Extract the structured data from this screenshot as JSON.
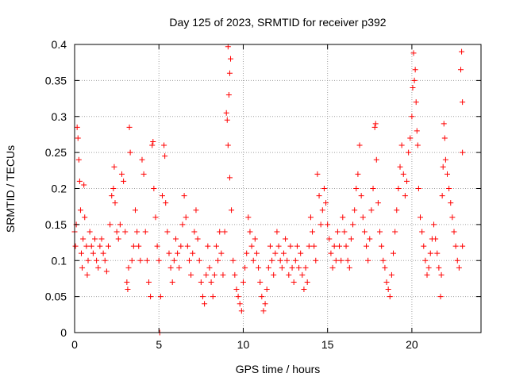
{
  "chart_data": {
    "type": "scatter",
    "title": "Day 125 of 2023, SRMTID for receiver p392",
    "xlabel": "GPS time / hours",
    "ylabel": "SRMTID / TECUs",
    "xlim": [
      0,
      24.1
    ],
    "ylim": [
      0,
      0.4
    ],
    "x_ticks": [
      0,
      5,
      10,
      15,
      20
    ],
    "x_tick_labels": [
      "0",
      "5",
      "10",
      "15",
      "20"
    ],
    "y_ticks": [
      0,
      0.05,
      0.1,
      0.15,
      0.2,
      0.25,
      0.3,
      0.35,
      0.4
    ],
    "y_tick_labels": [
      "0",
      "0.05",
      "0.1",
      "0.15",
      "0.2",
      "0.25",
      "0.3",
      "0.35",
      "0.4"
    ],
    "grid": true,
    "marker": "+",
    "color": "#ff0000",
    "series": [
      {
        "name": "SRMTID",
        "points": [
          [
            0.0,
            0.14
          ],
          [
            0.05,
            0.12
          ],
          [
            0.1,
            0.15
          ],
          [
            0.15,
            0.285
          ],
          [
            0.2,
            0.27
          ],
          [
            0.25,
            0.24
          ],
          [
            0.3,
            0.21
          ],
          [
            0.35,
            0.17
          ],
          [
            0.4,
            0.11
          ],
          [
            0.45,
            0.09
          ],
          [
            0.5,
            0.13
          ],
          [
            0.55,
            0.205
          ],
          [
            0.6,
            0.16
          ],
          [
            0.7,
            0.12
          ],
          [
            0.75,
            0.08
          ],
          [
            0.8,
            0.1
          ],
          [
            0.9,
            0.14
          ],
          [
            1.0,
            0.12
          ],
          [
            1.1,
            0.11
          ],
          [
            1.2,
            0.13
          ],
          [
            1.3,
            0.1
          ],
          [
            1.4,
            0.09
          ],
          [
            1.5,
            0.12
          ],
          [
            1.6,
            0.13
          ],
          [
            1.7,
            0.11
          ],
          [
            1.8,
            0.1
          ],
          [
            1.9,
            0.085
          ],
          [
            2.0,
            0.12
          ],
          [
            2.1,
            0.15
          ],
          [
            2.2,
            0.19
          ],
          [
            2.3,
            0.2
          ],
          [
            2.35,
            0.23
          ],
          [
            2.4,
            0.18
          ],
          [
            2.5,
            0.14
          ],
          [
            2.6,
            0.13
          ],
          [
            2.7,
            0.15
          ],
          [
            2.8,
            0.22
          ],
          [
            2.9,
            0.21
          ],
          [
            3.0,
            0.14
          ],
          [
            3.1,
            0.07
          ],
          [
            3.15,
            0.06
          ],
          [
            3.2,
            0.09
          ],
          [
            3.25,
            0.285
          ],
          [
            3.3,
            0.25
          ],
          [
            3.4,
            0.1
          ],
          [
            3.5,
            0.12
          ],
          [
            3.6,
            0.17
          ],
          [
            3.7,
            0.14
          ],
          [
            3.8,
            0.12
          ],
          [
            3.9,
            0.1
          ],
          [
            4.0,
            0.24
          ],
          [
            4.1,
            0.22
          ],
          [
            4.2,
            0.14
          ],
          [
            4.3,
            0.1
          ],
          [
            4.4,
            0.07
          ],
          [
            4.5,
            0.05
          ],
          [
            4.6,
            0.26
          ],
          [
            4.65,
            0.265
          ],
          [
            4.7,
            0.2
          ],
          [
            4.8,
            0.16
          ],
          [
            4.9,
            0.12
          ],
          [
            5.0,
            0.1
          ],
          [
            5.05,
            0.0
          ],
          [
            5.1,
            0.05
          ],
          [
            5.2,
            0.19
          ],
          [
            5.3,
            0.26
          ],
          [
            5.35,
            0.245
          ],
          [
            5.4,
            0.18
          ],
          [
            5.5,
            0.14
          ],
          [
            5.6,
            0.11
          ],
          [
            5.7,
            0.09
          ],
          [
            5.8,
            0.07
          ],
          [
            5.9,
            0.1
          ],
          [
            6.0,
            0.13
          ],
          [
            6.1,
            0.11
          ],
          [
            6.2,
            0.09
          ],
          [
            6.3,
            0.12
          ],
          [
            6.4,
            0.15
          ],
          [
            6.5,
            0.19
          ],
          [
            6.6,
            0.16
          ],
          [
            6.7,
            0.12
          ],
          [
            6.8,
            0.1
          ],
          [
            6.9,
            0.08
          ],
          [
            7.0,
            0.11
          ],
          [
            7.1,
            0.14
          ],
          [
            7.2,
            0.17
          ],
          [
            7.3,
            0.13
          ],
          [
            7.4,
            0.1
          ],
          [
            7.5,
            0.07
          ],
          [
            7.6,
            0.05
          ],
          [
            7.7,
            0.04
          ],
          [
            7.8,
            0.08
          ],
          [
            7.9,
            0.12
          ],
          [
            8.0,
            0.09
          ],
          [
            8.1,
            0.07
          ],
          [
            8.2,
            0.05
          ],
          [
            8.3,
            0.08
          ],
          [
            8.4,
            0.12
          ],
          [
            8.5,
            0.1
          ],
          [
            8.6,
            0.14
          ],
          [
            8.7,
            0.11
          ],
          [
            8.8,
            0.08
          ],
          [
            8.9,
            0.14
          ],
          [
            9.0,
            0.305
          ],
          [
            9.05,
            0.295
          ],
          [
            9.1,
            0.26
          ],
          [
            9.15,
            0.33
          ],
          [
            9.2,
            0.36
          ],
          [
            9.25,
            0.38
          ],
          [
            9.1,
            0.397
          ],
          [
            9.2,
            0.215
          ],
          [
            9.3,
            0.17
          ],
          [
            9.4,
            0.1
          ],
          [
            9.5,
            0.08
          ],
          [
            9.6,
            0.06
          ],
          [
            9.7,
            0.05
          ],
          [
            9.8,
            0.04
          ],
          [
            9.9,
            0.03
          ],
          [
            10.0,
            0.07
          ],
          [
            10.1,
            0.09
          ],
          [
            10.2,
            0.11
          ],
          [
            10.3,
            0.16
          ],
          [
            10.4,
            0.14
          ],
          [
            10.5,
            0.12
          ],
          [
            10.6,
            0.1
          ],
          [
            10.7,
            0.13
          ],
          [
            10.8,
            0.11
          ],
          [
            10.9,
            0.09
          ],
          [
            11.0,
            0.07
          ],
          [
            11.1,
            0.05
          ],
          [
            11.2,
            0.03
          ],
          [
            11.3,
            0.04
          ],
          [
            11.4,
            0.06
          ],
          [
            11.5,
            0.09
          ],
          [
            11.6,
            0.12
          ],
          [
            11.7,
            0.1
          ],
          [
            11.8,
            0.08
          ],
          [
            11.9,
            0.11
          ],
          [
            12.0,
            0.14
          ],
          [
            12.1,
            0.12
          ],
          [
            12.2,
            0.1
          ],
          [
            12.3,
            0.09
          ],
          [
            12.4,
            0.11
          ],
          [
            12.5,
            0.13
          ],
          [
            12.6,
            0.1
          ],
          [
            12.7,
            0.08
          ],
          [
            12.8,
            0.12
          ],
          [
            12.9,
            0.09
          ],
          [
            13.0,
            0.07
          ],
          [
            13.1,
            0.1
          ],
          [
            13.2,
            0.12
          ],
          [
            13.3,
            0.09
          ],
          [
            13.4,
            0.11
          ],
          [
            13.5,
            0.08
          ],
          [
            13.6,
            0.06
          ],
          [
            13.7,
            0.09
          ],
          [
            13.8,
            0.07
          ],
          [
            13.9,
            0.12
          ],
          [
            14.0,
            0.16
          ],
          [
            14.1,
            0.14
          ],
          [
            14.2,
            0.12
          ],
          [
            14.3,
            0.1
          ],
          [
            14.4,
            0.22
          ],
          [
            14.5,
            0.19
          ],
          [
            14.6,
            0.15
          ],
          [
            14.7,
            0.17
          ],
          [
            14.8,
            0.2
          ],
          [
            14.9,
            0.18
          ],
          [
            15.0,
            0.15
          ],
          [
            15.1,
            0.13
          ],
          [
            15.2,
            0.11
          ],
          [
            15.3,
            0.09
          ],
          [
            15.4,
            0.12
          ],
          [
            15.5,
            0.1
          ],
          [
            15.6,
            0.14
          ],
          [
            15.7,
            0.12
          ],
          [
            15.8,
            0.1
          ],
          [
            15.9,
            0.16
          ],
          [
            16.0,
            0.14
          ],
          [
            16.1,
            0.12
          ],
          [
            16.2,
            0.1
          ],
          [
            16.3,
            0.09
          ],
          [
            16.4,
            0.13
          ],
          [
            16.5,
            0.15
          ],
          [
            16.6,
            0.17
          ],
          [
            16.7,
            0.2
          ],
          [
            16.8,
            0.22
          ],
          [
            16.9,
            0.26
          ],
          [
            17.0,
            0.19
          ],
          [
            17.1,
            0.16
          ],
          [
            17.2,
            0.14
          ],
          [
            17.3,
            0.12
          ],
          [
            17.4,
            0.1
          ],
          [
            17.5,
            0.13
          ],
          [
            17.6,
            0.17
          ],
          [
            17.7,
            0.2
          ],
          [
            17.8,
            0.285
          ],
          [
            17.85,
            0.29
          ],
          [
            17.9,
            0.24
          ],
          [
            18.0,
            0.18
          ],
          [
            18.1,
            0.14
          ],
          [
            18.2,
            0.12
          ],
          [
            18.3,
            0.1
          ],
          [
            18.4,
            0.09
          ],
          [
            18.5,
            0.07
          ],
          [
            18.6,
            0.06
          ],
          [
            18.7,
            0.05
          ],
          [
            18.8,
            0.08
          ],
          [
            18.9,
            0.11
          ],
          [
            19.0,
            0.14
          ],
          [
            19.1,
            0.17
          ],
          [
            19.2,
            0.2
          ],
          [
            19.3,
            0.23
          ],
          [
            19.4,
            0.26
          ],
          [
            19.5,
            0.22
          ],
          [
            19.6,
            0.19
          ],
          [
            19.7,
            0.21
          ],
          [
            19.8,
            0.25
          ],
          [
            19.9,
            0.27
          ],
          [
            20.0,
            0.3
          ],
          [
            20.05,
            0.34
          ],
          [
            20.1,
            0.388
          ],
          [
            20.15,
            0.35
          ],
          [
            20.2,
            0.365
          ],
          [
            20.25,
            0.32
          ],
          [
            20.3,
            0.28
          ],
          [
            20.35,
            0.26
          ],
          [
            20.4,
            0.2
          ],
          [
            20.5,
            0.16
          ],
          [
            20.6,
            0.14
          ],
          [
            20.7,
            0.12
          ],
          [
            20.8,
            0.1
          ],
          [
            20.9,
            0.08
          ],
          [
            21.0,
            0.09
          ],
          [
            21.1,
            0.11
          ],
          [
            21.2,
            0.13
          ],
          [
            21.3,
            0.15
          ],
          [
            21.4,
            0.13
          ],
          [
            21.5,
            0.11
          ],
          [
            21.6,
            0.09
          ],
          [
            21.7,
            0.05
          ],
          [
            21.75,
            0.08
          ],
          [
            21.8,
            0.19
          ],
          [
            21.85,
            0.23
          ],
          [
            21.9,
            0.29
          ],
          [
            21.95,
            0.27
          ],
          [
            22.0,
            0.24
          ],
          [
            22.1,
            0.22
          ],
          [
            22.2,
            0.2
          ],
          [
            22.3,
            0.18
          ],
          [
            22.4,
            0.16
          ],
          [
            22.5,
            0.14
          ],
          [
            22.6,
            0.12
          ],
          [
            22.7,
            0.1
          ],
          [
            22.8,
            0.09
          ],
          [
            22.9,
            0.365
          ],
          [
            22.95,
            0.39
          ],
          [
            23.0,
            0.32
          ],
          [
            23.0,
            0.25
          ],
          [
            23.0,
            0.12
          ]
        ]
      }
    ]
  }
}
